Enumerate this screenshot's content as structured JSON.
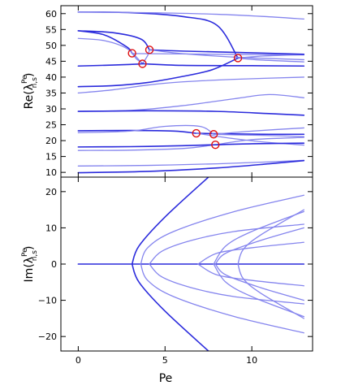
{
  "chart_data": [
    {
      "type": "line",
      "panel": "top",
      "xlabel": "",
      "ylabel": "Re(λ_{n,s}^{Pe})",
      "ylabel_main": "Re(λ",
      "ylabel_sup": "Pe",
      "ylabel_sub": "n,s",
      "ylabel_close": ")",
      "xlim": [
        -1,
        13.5
      ],
      "ylim": [
        8.5,
        62.5
      ],
      "xticks": [
        0,
        5,
        10
      ],
      "yticks": [
        10,
        15,
        20,
        25,
        30,
        35,
        40,
        45,
        50,
        55,
        60
      ],
      "ytick_labels": [
        "10",
        "15",
        "20",
        "25",
        "30",
        "35",
        "40",
        "45",
        "50",
        "55",
        "60"
      ],
      "grid": false,
      "colors": {
        "dark": "#2b2bdc",
        "light": "#8585ee",
        "marker": "#e01010"
      },
      "series": [
        {
          "tone": "dark",
          "x": [
            0,
            3,
            6,
            8,
            9.2
          ],
          "y": [
            60.5,
            60.3,
            59.1,
            56.3,
            46.0
          ]
        },
        {
          "tone": "light",
          "x": [
            9.2,
            10.5,
            13
          ],
          "y": [
            46.0,
            45.4,
            44.8
          ]
        },
        {
          "tone": "light",
          "x": [
            9.2,
            10.5,
            13
          ],
          "y": [
            46.0,
            46.6,
            47.1
          ]
        },
        {
          "tone": "light",
          "x": [
            0,
            4,
            8,
            11,
            13
          ],
          "y": [
            60.5,
            60.3,
            59.8,
            59.0,
            58.3
          ]
        },
        {
          "tone": "dark",
          "x": [
            0,
            2,
            4,
            6,
            7.7,
            9.2
          ],
          "y": [
            37.0,
            37.3,
            38.3,
            40.2,
            42.3,
            46.0
          ]
        },
        {
          "tone": "dark",
          "x": [
            0,
            1.5,
            2.8,
            3.1
          ],
          "y": [
            54.6,
            53.3,
            49.5,
            47.5
          ]
        },
        {
          "tone": "light",
          "x": [
            3.1,
            3.5,
            6,
            10,
            13
          ],
          "y": [
            47.5,
            47.4,
            47.3,
            47.1,
            47.0
          ]
        },
        {
          "tone": "light",
          "x": [
            3.1,
            3.4,
            3.8
          ],
          "y": [
            47.5,
            45.5,
            44.2
          ]
        },
        {
          "tone": "light",
          "x": [
            0,
            1.5,
            2.8,
            3.7
          ],
          "y": [
            52.2,
            51.5,
            49.0,
            44.2
          ]
        },
        {
          "tone": "light",
          "x": [
            3.7,
            4.0,
            4.1
          ],
          "y": [
            44.2,
            46.8,
            48.6
          ]
        },
        {
          "tone": "dark",
          "x": [
            3.7,
            6,
            10,
            13
          ],
          "y": [
            44.2,
            43.7,
            43.6,
            43.5
          ]
        },
        {
          "tone": "dark",
          "x": [
            0,
            2,
            3.0,
            3.7
          ],
          "y": [
            43.5,
            43.8,
            44.0,
            44.2
          ]
        },
        {
          "tone": "dark",
          "x": [
            0,
            2,
            3.6,
            4.1
          ],
          "y": [
            54.6,
            54.0,
            52.0,
            48.6
          ]
        },
        {
          "tone": "dark",
          "x": [
            4.1,
            6,
            9,
            13
          ],
          "y": [
            48.6,
            48.2,
            47.8,
            47.2
          ]
        },
        {
          "tone": "light",
          "x": [
            4.1,
            6,
            9,
            13
          ],
          "y": [
            48.6,
            47.4,
            46.3,
            45.5
          ]
        },
        {
          "tone": "light",
          "x": [
            0,
            2,
            4,
            6,
            9,
            13
          ],
          "y": [
            35.0,
            36.0,
            37.5,
            38.5,
            39.3,
            40.0
          ]
        },
        {
          "tone": "light",
          "x": [
            0,
            3,
            6,
            9,
            11,
            13
          ],
          "y": [
            29.3,
            29.5,
            31.0,
            33.2,
            34.5,
            33.5
          ]
        },
        {
          "tone": "dark",
          "x": [
            0,
            4,
            8,
            11,
            13
          ],
          "y": [
            29.2,
            29.4,
            29.2,
            28.5,
            28.0
          ]
        },
        {
          "tone": "dark",
          "x": [
            0,
            3,
            5.5,
            6.8
          ],
          "y": [
            23.1,
            23.2,
            23.0,
            22.3
          ]
        },
        {
          "tone": "dark",
          "x": [
            6.8,
            9,
            11,
            13
          ],
          "y": [
            22.3,
            22.1,
            22.0,
            22.0
          ]
        },
        {
          "tone": "light",
          "x": [
            6.8,
            9,
            11,
            13
          ],
          "y": [
            22.3,
            20.6,
            19.4,
            18.6
          ]
        },
        {
          "tone": "light",
          "x": [
            0,
            3,
            5,
            7,
            7.8
          ],
          "y": [
            22.5,
            23.0,
            24.5,
            24.5,
            22.0
          ]
        },
        {
          "tone": "light",
          "x": [
            7.8,
            10,
            13
          ],
          "y": [
            22.0,
            23.0,
            24.0
          ]
        },
        {
          "tone": "light",
          "x": [
            7.8,
            9,
            11,
            13
          ],
          "y": [
            22.0,
            21.8,
            21.6,
            21.3
          ]
        },
        {
          "tone": "light",
          "x": [
            0,
            3,
            6,
            7.9
          ],
          "y": [
            16.9,
            17.0,
            17.5,
            18.7
          ]
        },
        {
          "tone": "light",
          "x": [
            7.9,
            10,
            13
          ],
          "y": [
            18.7,
            20.3,
            21.0
          ]
        },
        {
          "tone": "dark",
          "x": [
            0,
            3,
            6,
            7.9
          ],
          "y": [
            18.0,
            18.1,
            18.4,
            18.7
          ]
        },
        {
          "tone": "dark",
          "x": [
            7.9,
            10,
            13
          ],
          "y": [
            18.7,
            19.0,
            19.2
          ]
        },
        {
          "tone": "light",
          "x": [
            0,
            4,
            8,
            11,
            13
          ],
          "y": [
            12.0,
            12.2,
            12.7,
            13.3,
            13.8
          ]
        },
        {
          "tone": "dark",
          "x": [
            0,
            4,
            8,
            11,
            13
          ],
          "y": [
            9.9,
            10.3,
            11.4,
            12.7,
            13.7
          ]
        }
      ],
      "markers": {
        "x": [
          3.1,
          3.7,
          4.1,
          9.2,
          6.8,
          7.8,
          7.9
        ],
        "y": [
          47.5,
          44.2,
          48.6,
          46.0,
          22.3,
          22.0,
          18.7
        ]
      }
    },
    {
      "type": "line",
      "panel": "bottom",
      "xlabel": "Pe",
      "ylabel": "Im(λ_{n,s}^{Pe})",
      "ylabel_main": "Im(λ",
      "ylabel_sup": "Pe",
      "ylabel_sub": "n,s",
      "ylabel_close": ")",
      "xlim": [
        -1,
        13.5
      ],
      "ylim": [
        -24,
        24
      ],
      "xticks": [
        0,
        5,
        10
      ],
      "xtick_labels": [
        "0",
        "5",
        "10"
      ],
      "yticks": [
        -20,
        -10,
        0,
        10,
        20
      ],
      "ytick_labels": [
        "−20",
        "−10",
        "0",
        "10",
        "20"
      ],
      "grid": false,
      "colors": {
        "dark": "#2b2bdc",
        "light": "#8585ee"
      },
      "series": [
        {
          "tone": "dark",
          "x": [
            0,
            2,
            4,
            6,
            8,
            10,
            13
          ],
          "y": [
            0,
            0,
            0,
            0,
            0,
            0,
            0
          ]
        },
        {
          "tone": "dark",
          "x": [
            7.5,
            5.0,
            3.5,
            3.1
          ],
          "y": [
            24.0,
            13.0,
            5.0,
            0
          ]
        },
        {
          "tone": "dark",
          "x": [
            3.1,
            3.5,
            5.0,
            7.5
          ],
          "y": [
            0,
            -5.0,
            -13.0,
            -24.0
          ]
        },
        {
          "tone": "light",
          "x": [
            13,
            9,
            5.5,
            4.0,
            3.6
          ],
          "y": [
            19.0,
            14.5,
            9.0,
            4.5,
            0
          ]
        },
        {
          "tone": "light",
          "x": [
            3.6,
            4.0,
            5.5,
            9,
            13
          ],
          "y": [
            0,
            -4.5,
            -9.0,
            -14.5,
            -19.0
          ]
        },
        {
          "tone": "light",
          "x": [
            13,
            9,
            6.5,
            4.8,
            4.1
          ],
          "y": [
            11.0,
            9.0,
            6.5,
            3.5,
            0
          ]
        },
        {
          "tone": "light",
          "x": [
            4.1,
            4.8,
            6.5,
            9,
            13
          ],
          "y": [
            0,
            -3.5,
            -6.5,
            -9.0,
            -11.0
          ]
        },
        {
          "tone": "light",
          "x": [
            13,
            10,
            8,
            6.9
          ],
          "y": [
            6.0,
            4.5,
            3.0,
            0
          ]
        },
        {
          "tone": "light",
          "x": [
            6.9,
            8,
            10,
            13
          ],
          "y": [
            0,
            -3.0,
            -4.5,
            -6.0
          ]
        },
        {
          "tone": "light",
          "x": [
            13,
            10,
            8.5,
            7.8
          ],
          "y": [
            14.5,
            9.0,
            5.0,
            0
          ]
        },
        {
          "tone": "light",
          "x": [
            7.8,
            8.5,
            10,
            13
          ],
          "y": [
            0,
            -5.0,
            -9.0,
            -14.5
          ]
        },
        {
          "tone": "light",
          "x": [
            13,
            10.5,
            8.5,
            7.9
          ],
          "y": [
            10.0,
            6.5,
            3.0,
            0
          ]
        },
        {
          "tone": "light",
          "x": [
            7.9,
            8.5,
            10.5,
            13
          ],
          "y": [
            0,
            -3.0,
            -6.5,
            -10.0
          ]
        },
        {
          "tone": "light",
          "x": [
            13,
            10.5,
            9.5,
            9.2
          ],
          "y": [
            15.0,
            8.0,
            4.0,
            0
          ]
        },
        {
          "tone": "light",
          "x": [
            9.2,
            9.5,
            10.5,
            13
          ],
          "y": [
            0,
            -4.0,
            -8.0,
            -15.0
          ]
        }
      ]
    }
  ]
}
